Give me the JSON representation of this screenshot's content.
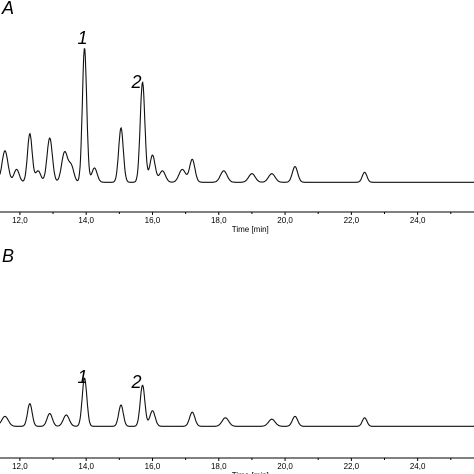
{
  "chart_data": [
    {
      "type": "line",
      "panel_label": "A",
      "xlabel": "Time [min]",
      "xlim": [
        11.4,
        25.7
      ],
      "ylim": [
        0,
        100
      ],
      "xticks": [
        12.0,
        14.0,
        16.0,
        18.0,
        20.0,
        22.0,
        24.0
      ],
      "xtick_labels": [
        "12,0",
        "14,0",
        "16,0",
        "18,0",
        "20,0",
        "22,0",
        "24,0"
      ],
      "baseline": 4,
      "peaks": [
        {
          "x": 11.55,
          "y": 22,
          "w": 0.09
        },
        {
          "x": 11.9,
          "y": 9,
          "w": 0.08
        },
        {
          "x": 12.3,
          "y": 34,
          "w": 0.07
        },
        {
          "x": 12.55,
          "y": 8,
          "w": 0.08
        },
        {
          "x": 12.9,
          "y": 31,
          "w": 0.08
        },
        {
          "x": 13.35,
          "y": 21,
          "w": 0.09
        },
        {
          "x": 13.55,
          "y": 11,
          "w": 0.08
        },
        {
          "x": 13.95,
          "y": 94,
          "w": 0.065
        },
        {
          "x": 14.25,
          "y": 10,
          "w": 0.08
        },
        {
          "x": 15.05,
          "y": 38,
          "w": 0.07
        },
        {
          "x": 15.7,
          "y": 70,
          "w": 0.07
        },
        {
          "x": 16.0,
          "y": 19,
          "w": 0.08
        },
        {
          "x": 16.3,
          "y": 8,
          "w": 0.09
        },
        {
          "x": 16.9,
          "y": 9,
          "w": 0.1
        },
        {
          "x": 17.2,
          "y": 16,
          "w": 0.08
        },
        {
          "x": 18.15,
          "y": 8,
          "w": 0.1
        },
        {
          "x": 19.0,
          "y": 6,
          "w": 0.1
        },
        {
          "x": 19.6,
          "y": 6,
          "w": 0.1
        },
        {
          "x": 20.3,
          "y": 11,
          "w": 0.08
        },
        {
          "x": 22.4,
          "y": 7,
          "w": 0.07
        }
      ],
      "annotations": [
        {
          "text": "1",
          "x": 13.95
        },
        {
          "text": "2",
          "x": 15.7
        }
      ]
    },
    {
      "type": "line",
      "panel_label": "B",
      "xlabel": "Time [min]",
      "xlim": [
        11.4,
        25.7
      ],
      "ylim": [
        0,
        100
      ],
      "xticks": [
        12.0,
        14.0,
        16.0,
        18.0,
        20.0,
        22.0,
        24.0
      ],
      "xtick_labels": [
        "12,0",
        "14,0",
        "16,0",
        "18,0",
        "20,0",
        "22,0",
        "24,0"
      ],
      "baseline": 4,
      "peaks": [
        {
          "x": 11.55,
          "y": 7,
          "w": 0.1
        },
        {
          "x": 12.3,
          "y": 16,
          "w": 0.07
        },
        {
          "x": 12.9,
          "y": 9,
          "w": 0.08
        },
        {
          "x": 13.4,
          "y": 8,
          "w": 0.09
        },
        {
          "x": 13.95,
          "y": 34,
          "w": 0.07
        },
        {
          "x": 15.05,
          "y": 15,
          "w": 0.07
        },
        {
          "x": 15.7,
          "y": 29,
          "w": 0.07
        },
        {
          "x": 16.0,
          "y": 11,
          "w": 0.08
        },
        {
          "x": 17.2,
          "y": 10,
          "w": 0.08
        },
        {
          "x": 18.2,
          "y": 6,
          "w": 0.1
        },
        {
          "x": 19.6,
          "y": 5,
          "w": 0.1
        },
        {
          "x": 20.3,
          "y": 7,
          "w": 0.08
        },
        {
          "x": 22.4,
          "y": 6,
          "w": 0.07
        }
      ],
      "annotations": [
        {
          "text": "1",
          "x": 13.95
        },
        {
          "text": "2",
          "x": 15.7
        }
      ]
    }
  ]
}
